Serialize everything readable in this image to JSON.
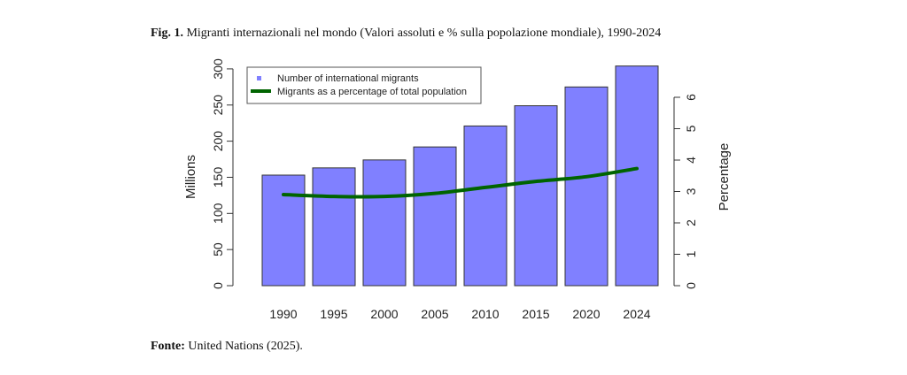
{
  "figure": {
    "caption_label": "Fig. 1.",
    "caption_text": "Migranti internazionali nel mondo (Valori assoluti e % sulla popolazione mondiale), 1990-2024",
    "source_label": "Fonte:",
    "source_text": "United Nations (2025)."
  },
  "chart_data": {
    "type": "bar",
    "categories": [
      "1990",
      "1995",
      "2000",
      "2005",
      "2010",
      "2015",
      "2020",
      "2024"
    ],
    "series": [
      {
        "name": "Number of international migrants",
        "type": "bar",
        "axis": "left",
        "color": "#8080ff",
        "values": [
          153,
          163,
          174,
          192,
          221,
          249,
          275,
          304
        ]
      },
      {
        "name": "Migrants as a percentage of total population",
        "type": "line",
        "axis": "right",
        "color": "#006400",
        "values": [
          2.9,
          2.84,
          2.84,
          2.94,
          3.13,
          3.32,
          3.47,
          3.73
        ]
      }
    ],
    "ylabel": "Millions",
    "ylim": [
      0,
      300
    ],
    "yticks": [
      0,
      50,
      100,
      150,
      200,
      250,
      300
    ],
    "y2label": "Percentage",
    "y2lim": [
      0,
      6
    ],
    "y2ticks": [
      0,
      1,
      2,
      3,
      4,
      5,
      6
    ],
    "legend_position": "top-left",
    "grid": false
  }
}
